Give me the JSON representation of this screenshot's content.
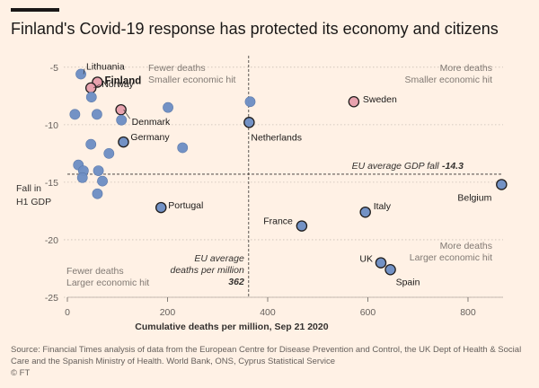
{
  "title": "Finland's Covid-19 response has protected its economy and citizens",
  "source": "Source: Financial Times analysis of data from the European Centre for Disease Prevention and Control, the UK Dept of Health & Social Care and the Spanish Ministry of Health. World Bank, ONS, Cyprus Statistical Service",
  "credit": "© FT",
  "colors": {
    "background": "#fff1e5",
    "default_point": "#6f8fc4",
    "finland_point": "#e8a0ad",
    "sweden_point": "#e8a0ad",
    "dark_outline": "#1a1817"
  },
  "chart_data": {
    "type": "scatter",
    "xlabel": "Cumulative deaths per million, Sep 21 2020",
    "ylabel_lines": [
      "Fall in",
      "H1 GDP"
    ],
    "xlim": [
      0,
      870
    ],
    "ylim": [
      -25,
      -4
    ],
    "xticks": [
      0,
      200,
      400,
      600,
      800
    ],
    "yticks": [
      -5,
      -10,
      -15,
      -20,
      -25
    ],
    "grid": "horizontal dotted",
    "reference_lines": {
      "eu_average_gdp": -14.3,
      "eu_average_gdp_label": "EU average GDP fall",
      "eu_average_gdp_value_label": "-14.3",
      "eu_average_deaths": 362,
      "eu_average_deaths_label": [
        "EU average",
        "deaths per million"
      ],
      "eu_average_deaths_value_label": "362"
    },
    "quadrant_labels": {
      "top_left": [
        "Fewer deaths",
        "Smaller economic hit"
      ],
      "top_right": [
        "More deaths",
        "Smaller economic hit"
      ],
      "bottom_left": [
        "Fewer deaths",
        "Larger economic hit"
      ],
      "bottom_right": [
        "More deaths",
        "Larger economic hit"
      ]
    },
    "points": [
      {
        "label": "Lithuania",
        "x": 27,
        "y": -5.6,
        "style": "default"
      },
      {
        "label": "Finland",
        "x": 60,
        "y": -6.3,
        "style": "finland",
        "bold": true
      },
      {
        "label": "Norway",
        "x": 47,
        "y": -6.8,
        "style": "pink"
      },
      {
        "label": "Denmark",
        "x": 107,
        "y": -8.7,
        "style": "pink"
      },
      {
        "label": "Germany",
        "x": 112,
        "y": -11.5,
        "style": "outlined"
      },
      {
        "label": "Sweden",
        "x": 572,
        "y": -8.0,
        "style": "pink"
      },
      {
        "label": "Netherlands",
        "x": 363,
        "y": -9.8,
        "style": "outlined"
      },
      {
        "label": "Portugal",
        "x": 187,
        "y": -17.2,
        "style": "outlined"
      },
      {
        "label": "Italy",
        "x": 595,
        "y": -17.6,
        "style": "outlined"
      },
      {
        "label": "France",
        "x": 468,
        "y": -18.8,
        "style": "outlined"
      },
      {
        "label": "Belgium",
        "x": 867,
        "y": -15.2,
        "style": "outlined"
      },
      {
        "label": "UK",
        "x": 626,
        "y": -22.0,
        "style": "outlined"
      },
      {
        "label": "Spain",
        "x": 645,
        "y": -22.6,
        "style": "outlined"
      },
      {
        "label": "",
        "x": 15,
        "y": -9.1,
        "style": "default"
      },
      {
        "label": "",
        "x": 48,
        "y": -7.6,
        "style": "default"
      },
      {
        "label": "",
        "x": 59,
        "y": -9.1,
        "style": "default"
      },
      {
        "label": "",
        "x": 108,
        "y": -9.6,
        "style": "default"
      },
      {
        "label": "",
        "x": 201,
        "y": -8.5,
        "style": "default"
      },
      {
        "label": "",
        "x": 365,
        "y": -8.0,
        "style": "default"
      },
      {
        "label": "",
        "x": 47,
        "y": -11.7,
        "style": "default"
      },
      {
        "label": "",
        "x": 83,
        "y": -12.5,
        "style": "default"
      },
      {
        "label": "",
        "x": 230,
        "y": -12.0,
        "style": "default"
      },
      {
        "label": "",
        "x": 22,
        "y": -13.5,
        "style": "default"
      },
      {
        "label": "",
        "x": 32,
        "y": -14.0,
        "style": "default"
      },
      {
        "label": "",
        "x": 62,
        "y": -14.0,
        "style": "default"
      },
      {
        "label": "",
        "x": 30,
        "y": -14.6,
        "style": "default"
      },
      {
        "label": "",
        "x": 70,
        "y": -14.9,
        "style": "default"
      },
      {
        "label": "",
        "x": 60,
        "y": -16.0,
        "style": "default"
      }
    ]
  }
}
